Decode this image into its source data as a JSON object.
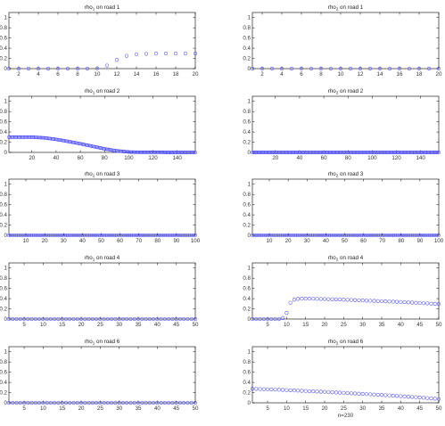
{
  "footer_text": "n=230",
  "marker_color": "#4d4dff",
  "axis_color": "#000000",
  "chart_data": [
    {
      "type": "scatter",
      "title": "rho1 on road 1",
      "xlim": [
        1,
        20
      ],
      "ylim": [
        0,
        1.1
      ],
      "xticks": [
        2,
        4,
        6,
        8,
        10,
        12,
        14,
        16,
        18,
        20
      ],
      "yticks": [
        0,
        0.2,
        0.4,
        0.6,
        0.8,
        1
      ],
      "x": [
        1,
        2,
        3,
        4,
        5,
        6,
        7,
        8,
        9,
        10,
        11,
        12,
        13,
        14,
        15,
        16,
        17,
        18,
        19,
        20
      ],
      "y": [
        0,
        0,
        0,
        0,
        0,
        0,
        0,
        0,
        0,
        0.005,
        0.06,
        0.17,
        0.25,
        0.28,
        0.29,
        0.295,
        0.295,
        0.295,
        0.295,
        0.295
      ]
    },
    {
      "type": "scatter",
      "title": "rho2 on road 1",
      "xlim": [
        1,
        20
      ],
      "ylim": [
        0,
        1.1
      ],
      "xticks": [
        2,
        4,
        6,
        8,
        10,
        12,
        14,
        16,
        18,
        20
      ],
      "yticks": [
        0,
        0.2,
        0.4,
        0.6,
        0.8,
        1
      ],
      "x": [
        1,
        2,
        3,
        4,
        5,
        6,
        7,
        8,
        9,
        10,
        11,
        12,
        13,
        14,
        15,
        16,
        17,
        18,
        19,
        20
      ],
      "y": [
        0,
        0,
        0,
        0,
        0,
        0,
        0,
        0,
        0,
        0,
        0,
        0,
        0,
        0,
        0,
        0,
        0,
        0,
        0,
        0
      ]
    },
    {
      "type": "scatter",
      "title": "rho1 on road 2",
      "xlim": [
        1,
        155
      ],
      "ylim": [
        0,
        1.1
      ],
      "xticks": [
        20,
        40,
        60,
        80,
        100,
        120,
        140
      ],
      "yticks": [
        0,
        0.2,
        0.4,
        0.6,
        0.8,
        1
      ],
      "x_range": [
        1,
        155
      ],
      "curve": [
        [
          1,
          0.3
        ],
        [
          20,
          0.3
        ],
        [
          30,
          0.285
        ],
        [
          40,
          0.255
        ],
        [
          50,
          0.215
        ],
        [
          60,
          0.17
        ],
        [
          70,
          0.12
        ],
        [
          80,
          0.07
        ],
        [
          90,
          0.03
        ],
        [
          100,
          0.008
        ],
        [
          110,
          0.002
        ],
        [
          155,
          0
        ]
      ]
    },
    {
      "type": "scatter",
      "title": "rho2 on road 2",
      "xlim": [
        1,
        155
      ],
      "ylim": [
        0,
        1.1
      ],
      "xticks": [
        20,
        40,
        60,
        80,
        100,
        120,
        140
      ],
      "yticks": [
        0,
        0.2,
        0.4,
        0.6,
        0.8,
        1
      ],
      "x_range": [
        1,
        155
      ],
      "curve": [
        [
          1,
          0
        ],
        [
          155,
          0
        ]
      ]
    },
    {
      "type": "scatter",
      "title": "rho1 on road 3",
      "xlim": [
        1,
        100
      ],
      "ylim": [
        0,
        1.1
      ],
      "xticks": [
        10,
        20,
        30,
        40,
        50,
        60,
        70,
        80,
        90,
        100
      ],
      "yticks": [
        0,
        0.2,
        0.4,
        0.6,
        0.8,
        1
      ],
      "x_range": [
        1,
        100
      ],
      "curve": [
        [
          1,
          0
        ],
        [
          100,
          0
        ]
      ]
    },
    {
      "type": "scatter",
      "title": "rho2 on road 3",
      "xlim": [
        1,
        100
      ],
      "ylim": [
        0,
        1.1
      ],
      "xticks": [
        10,
        20,
        30,
        40,
        50,
        60,
        70,
        80,
        90,
        100
      ],
      "yticks": [
        0,
        0.2,
        0.4,
        0.6,
        0.8,
        1
      ],
      "x_range": [
        1,
        100
      ],
      "curve": [
        [
          1,
          0
        ],
        [
          100,
          0
        ]
      ]
    },
    {
      "type": "scatter",
      "title": "rho1 on road 4",
      "xlim": [
        1,
        50
      ],
      "ylim": [
        0,
        1.1
      ],
      "xticks": [
        5,
        10,
        15,
        20,
        25,
        30,
        35,
        40,
        45,
        50
      ],
      "yticks": [
        0,
        0.2,
        0.4,
        0.6,
        0.8,
        1
      ],
      "x_range": [
        1,
        50
      ],
      "curve": [
        [
          1,
          0
        ],
        [
          50,
          0
        ]
      ]
    },
    {
      "type": "scatter",
      "title": "rho2 on road 4",
      "xlim": [
        1,
        50
      ],
      "ylim": [
        0,
        1.1
      ],
      "xticks": [
        5,
        10,
        15,
        20,
        25,
        30,
        35,
        40,
        45,
        50
      ],
      "yticks": [
        0,
        0.2,
        0.4,
        0.6,
        0.8,
        1
      ],
      "x": [
        1,
        2,
        3,
        4,
        5,
        6,
        7,
        8,
        9,
        10,
        11,
        12,
        13,
        14,
        15,
        16,
        17,
        18,
        19,
        20,
        21,
        22,
        23,
        24,
        25,
        26,
        27,
        28,
        29,
        30,
        31,
        32,
        33,
        34,
        35,
        36,
        37,
        38,
        39,
        40,
        41,
        42,
        43,
        44,
        45,
        46,
        47,
        48,
        49,
        50
      ],
      "y": [
        0,
        0,
        0,
        0,
        0,
        0,
        0,
        0,
        0.02,
        0.12,
        0.32,
        0.38,
        0.395,
        0.4,
        0.4,
        0.4,
        0.398,
        0.396,
        0.394,
        0.392,
        0.39,
        0.388,
        0.386,
        0.383,
        0.38,
        0.377,
        0.374,
        0.371,
        0.368,
        0.365,
        0.362,
        0.359,
        0.356,
        0.353,
        0.35,
        0.347,
        0.344,
        0.341,
        0.338,
        0.335,
        0.331,
        0.327,
        0.323,
        0.319,
        0.315,
        0.311,
        0.307,
        0.303,
        0.299,
        0.295
      ]
    },
    {
      "type": "scatter",
      "title": "rho1 on road 6",
      "xlim": [
        1,
        50
      ],
      "ylim": [
        0,
        1.1
      ],
      "xticks": [
        5,
        10,
        15,
        20,
        25,
        30,
        35,
        40,
        45,
        50
      ],
      "yticks": [
        0,
        0.2,
        0.4,
        0.6,
        0.8,
        1
      ],
      "x_range": [
        1,
        50
      ],
      "curve": [
        [
          1,
          0
        ],
        [
          50,
          0
        ]
      ]
    },
    {
      "type": "scatter",
      "title": "rho2 on road 6",
      "xlim": [
        1,
        50
      ],
      "ylim": [
        0,
        1.1
      ],
      "xticks": [
        5,
        10,
        15,
        20,
        25,
        30,
        35,
        40,
        45,
        50
      ],
      "yticks": [
        0,
        0.2,
        0.4,
        0.6,
        0.8,
        1
      ],
      "x_range": [
        1,
        50
      ],
      "curve": [
        [
          1,
          0.275
        ],
        [
          5,
          0.265
        ],
        [
          10,
          0.25
        ],
        [
          15,
          0.232
        ],
        [
          20,
          0.215
        ],
        [
          25,
          0.195
        ],
        [
          30,
          0.175
        ],
        [
          35,
          0.155
        ],
        [
          40,
          0.13
        ],
        [
          45,
          0.105
        ],
        [
          50,
          0.075
        ]
      ]
    }
  ]
}
